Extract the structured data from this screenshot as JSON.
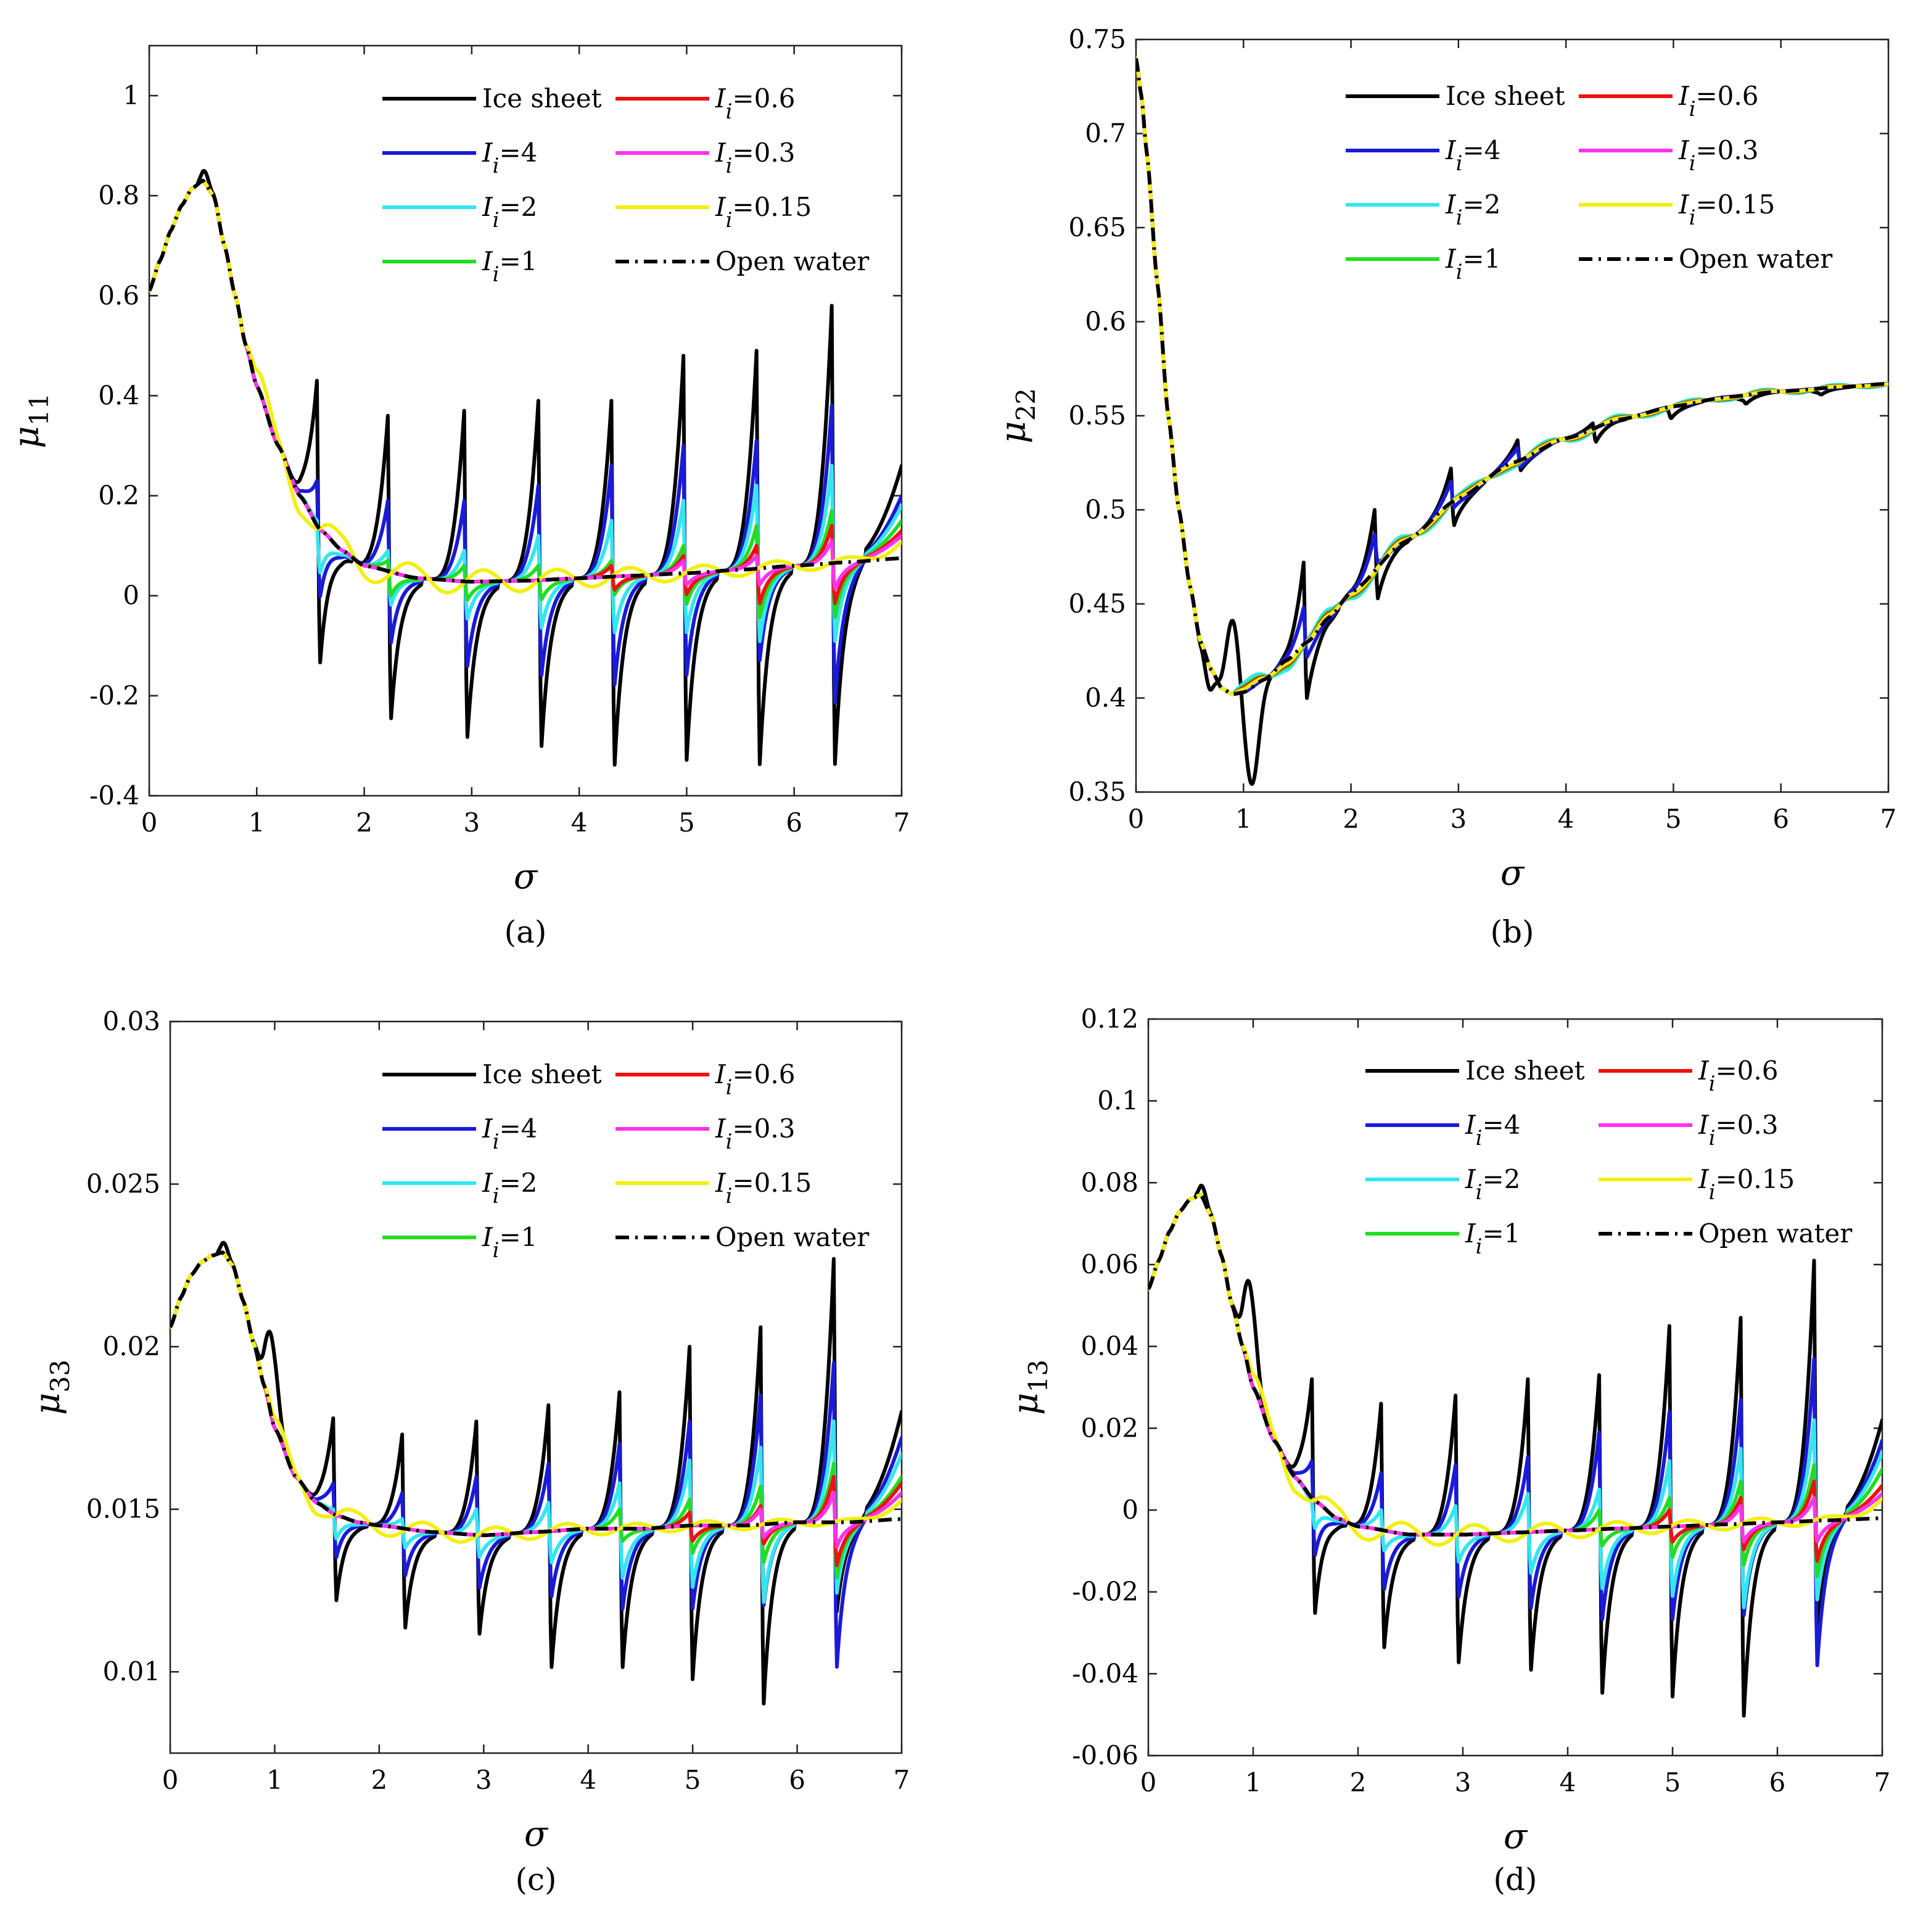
{
  "figure": {
    "series_names": [
      "Ice sheet",
      "I_i=4",
      "I_i=2",
      "I_i=1",
      "I_i=0.6",
      "I_i=0.3",
      "I_i=0.15",
      "Open water"
    ],
    "series_colors": {
      "Ice sheet": "#000000",
      "I_i=4": "#1a1ad9",
      "I_i=2": "#33e6f0",
      "I_i=1": "#22dd22",
      "I_i=0.6": "#ee1111",
      "I_i=0.3": "#ff33ee",
      "I_i=0.15": "#f2ef11",
      "Open water": "#000000"
    },
    "legend": [
      {
        "key": "Ice sheet",
        "plain": "Ice sheet"
      },
      {
        "key": "I_i=4",
        "sym": "I",
        "sub": "i",
        "rest": "=4"
      },
      {
        "key": "I_i=2",
        "sym": "I",
        "sub": "i",
        "rest": "=2"
      },
      {
        "key": "I_i=1",
        "sym": "I",
        "sub": "i",
        "rest": "=1"
      },
      {
        "key": "I_i=0.6",
        "sym": "I",
        "sub": "i",
        "rest": "=0.6"
      },
      {
        "key": "I_i=0.3",
        "sym": "I",
        "sub": "i",
        "rest": "=0.3"
      },
      {
        "key": "I_i=0.15",
        "sym": "I",
        "sub": "i",
        "rest": "=0.15"
      },
      {
        "key": "Open water",
        "plain": "Open water"
      }
    ]
  },
  "chart_data": [
    {
      "id": "a",
      "type": "line",
      "caption": "(a)",
      "xlabel": "σ",
      "ylabel_base": "μ",
      "ylabel_sub": "11",
      "xlim": [
        0,
        7
      ],
      "ylim": [
        -0.4,
        1.1
      ],
      "xticks": [
        0,
        1,
        2,
        3,
        4,
        5,
        6,
        7
      ],
      "yticks": [
        -0.4,
        -0.2,
        0,
        0.2,
        0.4,
        0.6,
        0.8,
        1
      ],
      "ytick_labels": [
        "-0.4",
        "-0.2",
        "0",
        "0.2",
        "0.4",
        "0.6",
        "0.8",
        "1"
      ],
      "x": [
        0,
        0.1,
        0.2,
        0.3,
        0.4,
        0.5,
        0.6,
        0.7,
        0.8,
        0.9,
        1,
        1.2,
        1.4,
        1.6,
        1.8,
        2,
        2.5,
        3,
        3.5,
        4,
        4.5,
        5,
        5.5,
        6,
        6.5,
        7
      ],
      "baseline": [
        0.61,
        0.67,
        0.73,
        0.78,
        0.815,
        0.83,
        0.8,
        0.7,
        0.6,
        0.5,
        0.42,
        0.3,
        0.2,
        0.13,
        0.09,
        0.06,
        0.035,
        0.028,
        0.03,
        0.035,
        0.04,
        0.045,
        0.052,
        0.06,
        0.067,
        0.075
      ],
      "features": {
        "Ice sheet": {
          "bump_height": 0.42,
          "bump_pos": 1.0,
          "peaks": [
            1.56,
            2.22,
            2.93,
            3.62,
            4.3,
            4.97,
            5.65,
            6.35
          ],
          "peak_heights": [
            0.43,
            0.36,
            0.37,
            0.39,
            0.39,
            0.48,
            0.49,
            0.58
          ],
          "trough_heights": [
            -0.14,
            -0.26,
            -0.3,
            -0.32,
            -0.36,
            -0.35,
            -0.36,
            -0.36
          ],
          "final": 0.26
        },
        "I_i=4": {
          "peaks": [
            1.56,
            2.22,
            2.93,
            3.62,
            4.3,
            4.97,
            5.65,
            6.35
          ],
          "peak_heights": [
            0.23,
            0.19,
            0.19,
            0.22,
            0.26,
            0.3,
            0.31,
            0.38
          ],
          "trough_heights": [
            0.0,
            -0.1,
            -0.15,
            -0.17,
            -0.19,
            -0.17,
            -0.14,
            -0.23
          ],
          "final": 0.2
        },
        "I_i=2": {
          "peaks": [
            1.56,
            2.22,
            2.93,
            3.62,
            4.3,
            4.97,
            5.65,
            6.35
          ],
          "peak_heights": [
            0.15,
            0.09,
            0.09,
            0.12,
            0.15,
            0.19,
            0.22,
            0.26
          ],
          "trough_heights": [
            0.05,
            -0.02,
            -0.05,
            -0.07,
            -0.08,
            -0.08,
            -0.1,
            -0.1
          ],
          "final": 0.18
        },
        "I_i=1": {
          "peaks": [
            2.22,
            2.93,
            3.62,
            4.3,
            4.97,
            5.65,
            6.35
          ],
          "peak_heights": [
            0.07,
            0.06,
            0.06,
            0.07,
            0.1,
            0.14,
            0.17
          ],
          "trough_heights": [
            0.0,
            -0.01,
            -0.01,
            0.0,
            -0.02,
            -0.05,
            -0.05
          ],
          "final": 0.15
        },
        "I_i=0.6": {
          "peaks": [
            4.3,
            4.97,
            5.65,
            6.35
          ],
          "peak_heights": [
            0.06,
            0.08,
            0.1,
            0.14
          ],
          "trough_heights": [
            0.01,
            0.0,
            -0.02,
            -0.02
          ],
          "final": 0.13
        },
        "I_i=0.3": {
          "peaks": [
            4.97,
            5.65,
            6.35
          ],
          "peak_heights": [
            0.07,
            0.08,
            0.11
          ],
          "trough_heights": [
            0.02,
            0.02,
            0.01
          ],
          "final": 0.12
        },
        "I_i=0.15": {
          "wiggle_amp": 0.04,
          "final": 0.11
        }
      }
    },
    {
      "id": "b",
      "type": "line",
      "caption": "(b)",
      "xlabel": "σ",
      "ylabel_base": "μ",
      "ylabel_sub": "22",
      "xlim": [
        0,
        7
      ],
      "ylim": [
        0.35,
        0.75
      ],
      "xticks": [
        0,
        1,
        2,
        3,
        4,
        5,
        6,
        7
      ],
      "yticks": [
        0.35,
        0.4,
        0.45,
        0.5,
        0.55,
        0.6,
        0.65,
        0.7,
        0.75
      ],
      "ytick_labels": [
        "0.35",
        "0.4",
        "0.45",
        "0.5",
        "0.55",
        "0.6",
        "0.65",
        "0.7",
        "0.75"
      ],
      "x": [
        0,
        0.05,
        0.1,
        0.2,
        0.3,
        0.4,
        0.5,
        0.6,
        0.7,
        0.8,
        0.9,
        1,
        1.2,
        1.4,
        1.6,
        1.8,
        2,
        2.5,
        3,
        3.5,
        4,
        4.5,
        5,
        5.5,
        6,
        6.5,
        7
      ],
      "baseline": [
        0.74,
        0.72,
        0.69,
        0.62,
        0.55,
        0.5,
        0.46,
        0.43,
        0.415,
        0.405,
        0.402,
        0.403,
        0.41,
        0.42,
        0.43,
        0.443,
        0.456,
        0.483,
        0.506,
        0.525,
        0.538,
        0.548,
        0.555,
        0.56,
        0.563,
        0.565,
        0.567
      ],
      "features": {
        "Ice sheet": {
          "wiggle_amp": 0.04,
          "peaks": [
            1.56,
            2.22,
            2.93,
            3.55,
            4.25,
            4.95,
            5.65,
            6.35
          ],
          "peak_heights": [
            0.472,
            0.5,
            0.522,
            0.537,
            0.546,
            0.553,
            0.558,
            0.562
          ],
          "trough_heights": [
            0.397,
            0.45,
            0.49,
            0.52,
            0.535,
            0.548,
            0.556,
            0.561
          ],
          "dip": 0.354
        },
        "I_i=4": {
          "wiggle_amp": 0.015,
          "peaks": [
            1.56,
            2.22,
            2.93,
            3.55
          ],
          "peak_heights": [
            0.448,
            0.487,
            0.515,
            0.533
          ],
          "trough_heights": [
            0.42,
            0.47,
            0.5,
            0.522
          ]
        },
        "I_i=2": {
          "wiggle_amp": 0.006
        },
        "I_i=1": {
          "wiggle_amp": 0.004
        },
        "I_i=0.6": {
          "wiggle_amp": 0.003
        },
        "I_i=0.3": {
          "wiggle_amp": 0.002
        },
        "I_i=0.15": {
          "wiggle_amp": 0.002
        }
      }
    },
    {
      "id": "c",
      "type": "line",
      "caption": "(c)",
      "xlabel": "σ",
      "ylabel_base": "μ",
      "ylabel_sub": "33",
      "xlim": [
        0,
        7
      ],
      "ylim": [
        0.0075,
        0.03
      ],
      "xticks": [
        0,
        1,
        2,
        3,
        4,
        5,
        6,
        7
      ],
      "yticks": [
        0.01,
        0.015,
        0.02,
        0.025,
        0.03
      ],
      "ytick_labels": [
        "0.01",
        "0.015",
        "0.02",
        "0.025",
        "0.03"
      ],
      "x": [
        0,
        0.1,
        0.2,
        0.3,
        0.4,
        0.5,
        0.6,
        0.7,
        0.8,
        0.9,
        1,
        1.2,
        1.4,
        1.6,
        1.8,
        2,
        2.5,
        3,
        3.5,
        4,
        4.5,
        5,
        5.5,
        6,
        6.5,
        7
      ],
      "baseline": [
        0.0206,
        0.0215,
        0.0222,
        0.0226,
        0.0228,
        0.0229,
        0.0225,
        0.0214,
        0.0201,
        0.0188,
        0.0175,
        0.016,
        0.0152,
        0.0148,
        0.0146,
        0.0145,
        0.0143,
        0.0142,
        0.0143,
        0.0144,
        0.0144,
        0.0145,
        0.0145,
        0.0146,
        0.0146,
        0.0147
      ],
      "features": {
        "Ice sheet": {
          "bump_height": 0.0203,
          "bump_pos": 0.97,
          "peaks": [
            1.56,
            2.22,
            2.93,
            3.62,
            4.3,
            4.97,
            5.65,
            6.35
          ],
          "peak_heights": [
            0.0178,
            0.0173,
            0.0177,
            0.0182,
            0.0186,
            0.02,
            0.0206,
            0.0227
          ],
          "trough_heights": [
            0.0121,
            0.0112,
            0.011,
            0.0099,
            0.0099,
            0.0095,
            0.0087,
            0.0117
          ],
          "final": 0.018
        },
        "I_i=4": {
          "peaks": [
            1.56,
            2.22,
            2.93,
            3.62,
            4.3,
            4.97,
            5.65,
            6.35
          ],
          "peak_heights": [
            0.0158,
            0.0155,
            0.016,
            0.0164,
            0.017,
            0.0177,
            0.0185,
            0.0195
          ],
          "trough_heights": [
            0.0135,
            0.0129,
            0.0125,
            0.0122,
            0.0118,
            0.0118,
            0.0119,
            0.0099
          ],
          "final": 0.0172
        },
        "I_i=2": {
          "peaks": [
            1.56,
            2.22,
            2.93,
            3.62,
            4.3,
            4.97,
            5.65,
            6.35
          ],
          "peak_heights": [
            0.015,
            0.0147,
            0.015,
            0.0152,
            0.0158,
            0.0165,
            0.0169,
            0.0177
          ],
          "trough_heights": [
            0.0141,
            0.0138,
            0.0135,
            0.0133,
            0.0128,
            0.0125,
            0.012,
            0.0123
          ],
          "final": 0.0167
        },
        "I_i=1": {
          "peaks": [
            4.3,
            4.97,
            5.65,
            6.35
          ],
          "peak_heights": [
            0.015,
            0.0153,
            0.0157,
            0.0164
          ],
          "trough_heights": [
            0.014,
            0.0136,
            0.0133,
            0.0128
          ],
          "final": 0.016
        },
        "I_i=0.6": {
          "peaks": [
            4.97,
            5.65,
            6.35
          ],
          "peak_heights": [
            0.0149,
            0.0151,
            0.016
          ],
          "trough_heights": [
            0.014,
            0.0139,
            0.0132
          ],
          "final": 0.0158
        },
        "I_i=0.3": {
          "peaks": [
            5.65,
            6.35
          ],
          "peak_heights": [
            0.015,
            0.0155
          ],
          "trough_heights": [
            0.0141,
            0.0138
          ],
          "final": 0.0155
        },
        "I_i=0.15": {
          "wiggle_amp": 0.0004,
          "final": 0.0153
        }
      }
    },
    {
      "id": "d",
      "type": "line",
      "caption": "(d)",
      "xlabel": "σ",
      "ylabel_base": "μ",
      "ylabel_sub": "13",
      "xlim": [
        0,
        7
      ],
      "ylim": [
        -0.06,
        0.12
      ],
      "xticks": [
        0,
        1,
        2,
        3,
        4,
        5,
        6,
        7
      ],
      "yticks": [
        -0.06,
        -0.04,
        -0.02,
        0,
        0.02,
        0.04,
        0.06,
        0.08,
        0.1,
        0.12
      ],
      "ytick_labels": [
        "-0.06",
        "-0.04",
        "-0.02",
        "0",
        "0.02",
        "0.04",
        "0.06",
        "0.08",
        "0.1",
        "0.12"
      ],
      "x": [
        0,
        0.1,
        0.2,
        0.3,
        0.4,
        0.5,
        0.6,
        0.7,
        0.8,
        0.9,
        1,
        1.2,
        1.4,
        1.6,
        1.8,
        2,
        2.5,
        3,
        3.5,
        4,
        4.5,
        5,
        5.5,
        6,
        6.5,
        7
      ],
      "baseline": [
        0.054,
        0.061,
        0.068,
        0.073,
        0.076,
        0.077,
        0.072,
        0.062,
        0.05,
        0.04,
        0.03,
        0.017,
        0.008,
        0.002,
        -0.002,
        -0.004,
        -0.006,
        -0.006,
        -0.0055,
        -0.005,
        -0.0045,
        -0.004,
        -0.0035,
        -0.003,
        -0.0025,
        -0.002
      ],
      "features": {
        "Ice sheet": {
          "bump_height": 0.055,
          "bump_pos": 0.97,
          "peaks": [
            1.56,
            2.22,
            2.93,
            3.62,
            4.3,
            4.97,
            5.65,
            6.35
          ],
          "peak_heights": [
            0.032,
            0.026,
            0.028,
            0.032,
            0.033,
            0.045,
            0.047,
            0.061
          ],
          "trough_heights": [
            -0.026,
            -0.035,
            -0.039,
            -0.041,
            -0.047,
            -0.048,
            -0.053,
            -0.03
          ],
          "final": 0.022
        },
        "I_i=4": {
          "peaks": [
            1.56,
            2.22,
            2.93,
            3.62,
            4.3,
            4.97,
            5.65,
            6.35
          ],
          "peak_heights": [
            0.012,
            0.009,
            0.011,
            0.013,
            0.019,
            0.024,
            0.027,
            0.037
          ],
          "trough_heights": [
            -0.011,
            -0.02,
            -0.022,
            -0.025,
            -0.028,
            -0.028,
            -0.027,
            -0.04
          ],
          "final": 0.017
        },
        "I_i=2": {
          "peaks": [
            1.56,
            2.22,
            2.93,
            3.62,
            4.3,
            4.97,
            5.65,
            6.35
          ],
          "peak_heights": [
            0.002,
            0.0,
            0.001,
            0.004,
            0.005,
            0.012,
            0.015,
            0.022
          ],
          "trough_heights": [
            -0.004,
            -0.01,
            -0.013,
            -0.016,
            -0.02,
            -0.022,
            -0.025,
            -0.023
          ],
          "final": 0.014
        },
        "I_i=1": {
          "peaks": [
            4.3,
            4.97,
            5.65,
            6.35
          ],
          "peak_heights": [
            0.0,
            0.003,
            0.007,
            0.011
          ],
          "trough_heights": [
            -0.009,
            -0.012,
            -0.014,
            -0.017
          ],
          "final": 0.01
        },
        "I_i=0.6": {
          "peaks": [
            4.97,
            5.65,
            6.35
          ],
          "peak_heights": [
            0.0,
            0.003,
            0.007
          ],
          "trough_heights": [
            -0.008,
            -0.01,
            -0.013
          ],
          "final": 0.006
        },
        "I_i=0.3": {
          "peaks": [
            5.65,
            6.35
          ],
          "peak_heights": [
            0.001,
            0.003
          ],
          "trough_heights": [
            -0.008,
            -0.008
          ],
          "final": 0.004
        },
        "I_i=0.15": {
          "wiggle_amp": 0.004,
          "final": 0.003
        }
      }
    }
  ]
}
